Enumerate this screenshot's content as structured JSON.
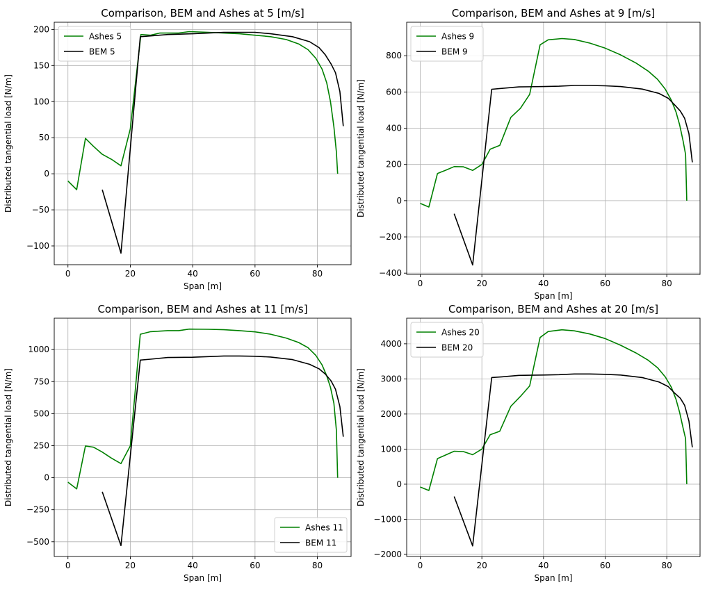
{
  "chart_data": [
    {
      "type": "line",
      "title": "Comparison, BEM and Ashes at 5 [m/s]",
      "xlabel": "Span [m]",
      "ylabel": "Distributed tangential load [N/m]",
      "xlim": [
        -4.4,
        90.8
      ],
      "ylim": [
        -126,
        210
      ],
      "xticks": [
        0,
        20,
        40,
        60,
        80
      ],
      "yticks": [
        -100,
        -50,
        0,
        50,
        100,
        150,
        200
      ],
      "grid": true,
      "legend_position": "upper-left",
      "series": [
        {
          "name": "Ashes 5",
          "color": "#008000",
          "points": [
            [
              0,
              -10
            ],
            [
              2.8,
              -22
            ],
            [
              5.6,
              49
            ],
            [
              8.2,
              38
            ],
            [
              11,
              27
            ],
            [
              14,
              20
            ],
            [
              17,
              11
            ],
            [
              20,
              62
            ],
            [
              23.4,
              193
            ],
            [
              26.5,
              192
            ],
            [
              29.4,
              195
            ],
            [
              32.5,
              195
            ],
            [
              35.5,
              195
            ],
            [
              38.9,
              197
            ],
            [
              45,
              196
            ],
            [
              50,
              195
            ],
            [
              55,
              194
            ],
            [
              60,
              192
            ],
            [
              65,
              190
            ],
            [
              70,
              186
            ],
            [
              74,
              180
            ],
            [
              77,
              172
            ],
            [
              79.5,
              160
            ],
            [
              81.5,
              145
            ],
            [
              83,
              126
            ],
            [
              84.2,
              100
            ],
            [
              85.3,
              65
            ],
            [
              86.1,
              30
            ],
            [
              86.5,
              0
            ]
          ]
        },
        {
          "name": "BEM 5",
          "color": "#000000",
          "points": [
            [
              11,
              -22
            ],
            [
              17,
              -110
            ],
            [
              23.2,
              190
            ],
            [
              26.5,
              191
            ],
            [
              32,
              193
            ],
            [
              40,
              194
            ],
            [
              45,
              195
            ],
            [
              50,
              196
            ],
            [
              55,
              196
            ],
            [
              60,
              196
            ],
            [
              65,
              194
            ],
            [
              72,
              190
            ],
            [
              77.5,
              183
            ],
            [
              80.5,
              175
            ],
            [
              82.5,
              165
            ],
            [
              84.4,
              152
            ],
            [
              85.8,
              140
            ],
            [
              87.2,
              114
            ],
            [
              88.3,
              66
            ]
          ]
        }
      ]
    },
    {
      "type": "line",
      "title": "Comparison, BEM and Ashes at 9 [m/s]",
      "xlabel": "Span [m]",
      "ylabel": "Distributed tangential load [N/m]",
      "xlim": [
        -4.4,
        90.8
      ],
      "ylim": [
        -407,
        985
      ],
      "xticks": [
        0,
        20,
        40,
        60,
        80
      ],
      "yticks": [
        -400,
        -200,
        0,
        200,
        400,
        600,
        800
      ],
      "grid": true,
      "legend_position": "upper-left",
      "series": [
        {
          "name": "Ashes 9",
          "color": "#008000",
          "points": [
            [
              0,
              -15
            ],
            [
              2.8,
              -35
            ],
            [
              5.6,
              150
            ],
            [
              8.2,
              168
            ],
            [
              11,
              188
            ],
            [
              14,
              187
            ],
            [
              17,
              167
            ],
            [
              20,
              200
            ],
            [
              22.7,
              284
            ],
            [
              25.8,
              305
            ],
            [
              29.4,
              460
            ],
            [
              32.5,
              510
            ],
            [
              35.5,
              587
            ],
            [
              38.9,
              860
            ],
            [
              41.5,
              888
            ],
            [
              46,
              895
            ],
            [
              50,
              890
            ],
            [
              55,
              870
            ],
            [
              60,
              842
            ],
            [
              65,
              805
            ],
            [
              70,
              760
            ],
            [
              74,
              715
            ],
            [
              77,
              670
            ],
            [
              79.5,
              616
            ],
            [
              81.5,
              554
            ],
            [
              83,
              490
            ],
            [
              84.2,
              418
            ],
            [
              85.3,
              330
            ],
            [
              86.1,
              255
            ],
            [
              86.5,
              0
            ]
          ]
        },
        {
          "name": "BEM 9",
          "color": "#000000",
          "points": [
            [
              11,
              -72
            ],
            [
              17,
              -355
            ],
            [
              23.2,
              615
            ],
            [
              26.5,
              620
            ],
            [
              32,
              628
            ],
            [
              40,
              630
            ],
            [
              45,
              632
            ],
            [
              50,
              636
            ],
            [
              55,
              636
            ],
            [
              60,
              634
            ],
            [
              65,
              630
            ],
            [
              72,
              616
            ],
            [
              77.5,
              592
            ],
            [
              80.5,
              565
            ],
            [
              82.5,
              530
            ],
            [
              84.4,
              495
            ],
            [
              85.8,
              455
            ],
            [
              87.2,
              370
            ],
            [
              88.3,
              212
            ]
          ]
        }
      ]
    },
    {
      "type": "line",
      "title": "Comparison, BEM and Ashes at 11 [m/s]",
      "xlabel": "Span [m]",
      "ylabel": "Distributed tangential load [N/m]",
      "xlim": [
        -4.4,
        90.8
      ],
      "ylim": [
        -615,
        1245
      ],
      "xticks": [
        0,
        20,
        40,
        60,
        80
      ],
      "yticks": [
        -500,
        -250,
        0,
        250,
        500,
        750,
        1000
      ],
      "grid": true,
      "legend_position": "lower-right",
      "series": [
        {
          "name": "Ashes 11",
          "color": "#008000",
          "points": [
            [
              0,
              -35
            ],
            [
              2.8,
              -88
            ],
            [
              5.6,
              248
            ],
            [
              8.2,
              238
            ],
            [
              11,
              200
            ],
            [
              14,
              152
            ],
            [
              17,
              110
            ],
            [
              20,
              248
            ],
            [
              23.2,
              1120
            ],
            [
              26.5,
              1140
            ],
            [
              32,
              1148
            ],
            [
              35.5,
              1148
            ],
            [
              38.9,
              1160
            ],
            [
              45,
              1158
            ],
            [
              50,
              1155
            ],
            [
              55,
              1148
            ],
            [
              60,
              1138
            ],
            [
              65,
              1120
            ],
            [
              70,
              1090
            ],
            [
              74,
              1055
            ],
            [
              77,
              1015
            ],
            [
              79.5,
              955
            ],
            [
              81.5,
              880
            ],
            [
              83,
              795
            ],
            [
              84.2,
              705
            ],
            [
              85.3,
              580
            ],
            [
              86.1,
              370
            ],
            [
              86.5,
              0
            ]
          ]
        },
        {
          "name": "BEM 11",
          "color": "#000000",
          "points": [
            [
              11,
              -110
            ],
            [
              17,
              -530
            ],
            [
              23.2,
              918
            ],
            [
              26.5,
              925
            ],
            [
              32,
              938
            ],
            [
              40,
              940
            ],
            [
              45,
              945
            ],
            [
              50,
              950
            ],
            [
              55,
              950
            ],
            [
              60,
              948
            ],
            [
              65,
              942
            ],
            [
              72,
              922
            ],
            [
              77.5,
              885
            ],
            [
              80.5,
              850
            ],
            [
              82.5,
              810
            ],
            [
              84.4,
              755
            ],
            [
              85.8,
              690
            ],
            [
              87.2,
              555
            ],
            [
              88.3,
              320
            ]
          ]
        }
      ]
    },
    {
      "type": "line",
      "title": "Comparison, BEM and Ashes at 20 [m/s]",
      "xlabel": "Span [m]",
      "ylabel": "Distributed tangential load [N/m]",
      "xlim": [
        -4.4,
        90.8
      ],
      "ylim": [
        -2060,
        4730
      ],
      "xticks": [
        0,
        20,
        40,
        60,
        80
      ],
      "yticks": [
        -2000,
        -1000,
        0,
        1000,
        2000,
        3000,
        4000
      ],
      "grid": true,
      "legend_position": "upper-left",
      "series": [
        {
          "name": "Ashes 20",
          "color": "#008000",
          "points": [
            [
              0,
              -80
            ],
            [
              2.8,
              -180
            ],
            [
              5.6,
              730
            ],
            [
              8.2,
              830
            ],
            [
              11,
              940
            ],
            [
              14,
              930
            ],
            [
              17,
              840
            ],
            [
              20,
              1000
            ],
            [
              22.7,
              1410
            ],
            [
              25.8,
              1510
            ],
            [
              29.4,
              2220
            ],
            [
              32.5,
              2500
            ],
            [
              35.5,
              2800
            ],
            [
              38.9,
              4180
            ],
            [
              41.5,
              4350
            ],
            [
              46,
              4400
            ],
            [
              50,
              4370
            ],
            [
              55,
              4280
            ],
            [
              60,
              4150
            ],
            [
              65,
              3960
            ],
            [
              70,
              3740
            ],
            [
              74,
              3530
            ],
            [
              77,
              3320
            ],
            [
              79.5,
              3060
            ],
            [
              81.5,
              2760
            ],
            [
              83,
              2420
            ],
            [
              84.2,
              2040
            ],
            [
              85.3,
              1600
            ],
            [
              86.1,
              1300
            ],
            [
              86.5,
              0
            ]
          ]
        },
        {
          "name": "BEM 20",
          "color": "#000000",
          "points": [
            [
              11,
              -350
            ],
            [
              17,
              -1760
            ],
            [
              23.2,
              3040
            ],
            [
              26.5,
              3060
            ],
            [
              32,
              3100
            ],
            [
              40,
              3110
            ],
            [
              45,
              3120
            ],
            [
              50,
              3140
            ],
            [
              55,
              3140
            ],
            [
              60,
              3130
            ],
            [
              65,
              3110
            ],
            [
              72,
              3040
            ],
            [
              77.5,
              2910
            ],
            [
              80.5,
              2780
            ],
            [
              82.5,
              2600
            ],
            [
              84.4,
              2450
            ],
            [
              85.8,
              2250
            ],
            [
              87.2,
              1800
            ],
            [
              88.3,
              1050
            ]
          ]
        }
      ]
    }
  ]
}
